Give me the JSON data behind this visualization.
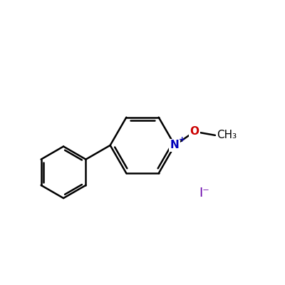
{
  "background_color": "#ffffff",
  "bond_color": "#000000",
  "nitrogen_color": "#0000bb",
  "oxygen_color": "#cc0000",
  "iodide_color": "#6600aa",
  "text_color": "#000000",
  "bond_width": 1.8,
  "figsize": [
    4.0,
    4.0
  ],
  "dpi": 100,
  "CH3_label": "CH₃",
  "iodide_label": "I⁻"
}
